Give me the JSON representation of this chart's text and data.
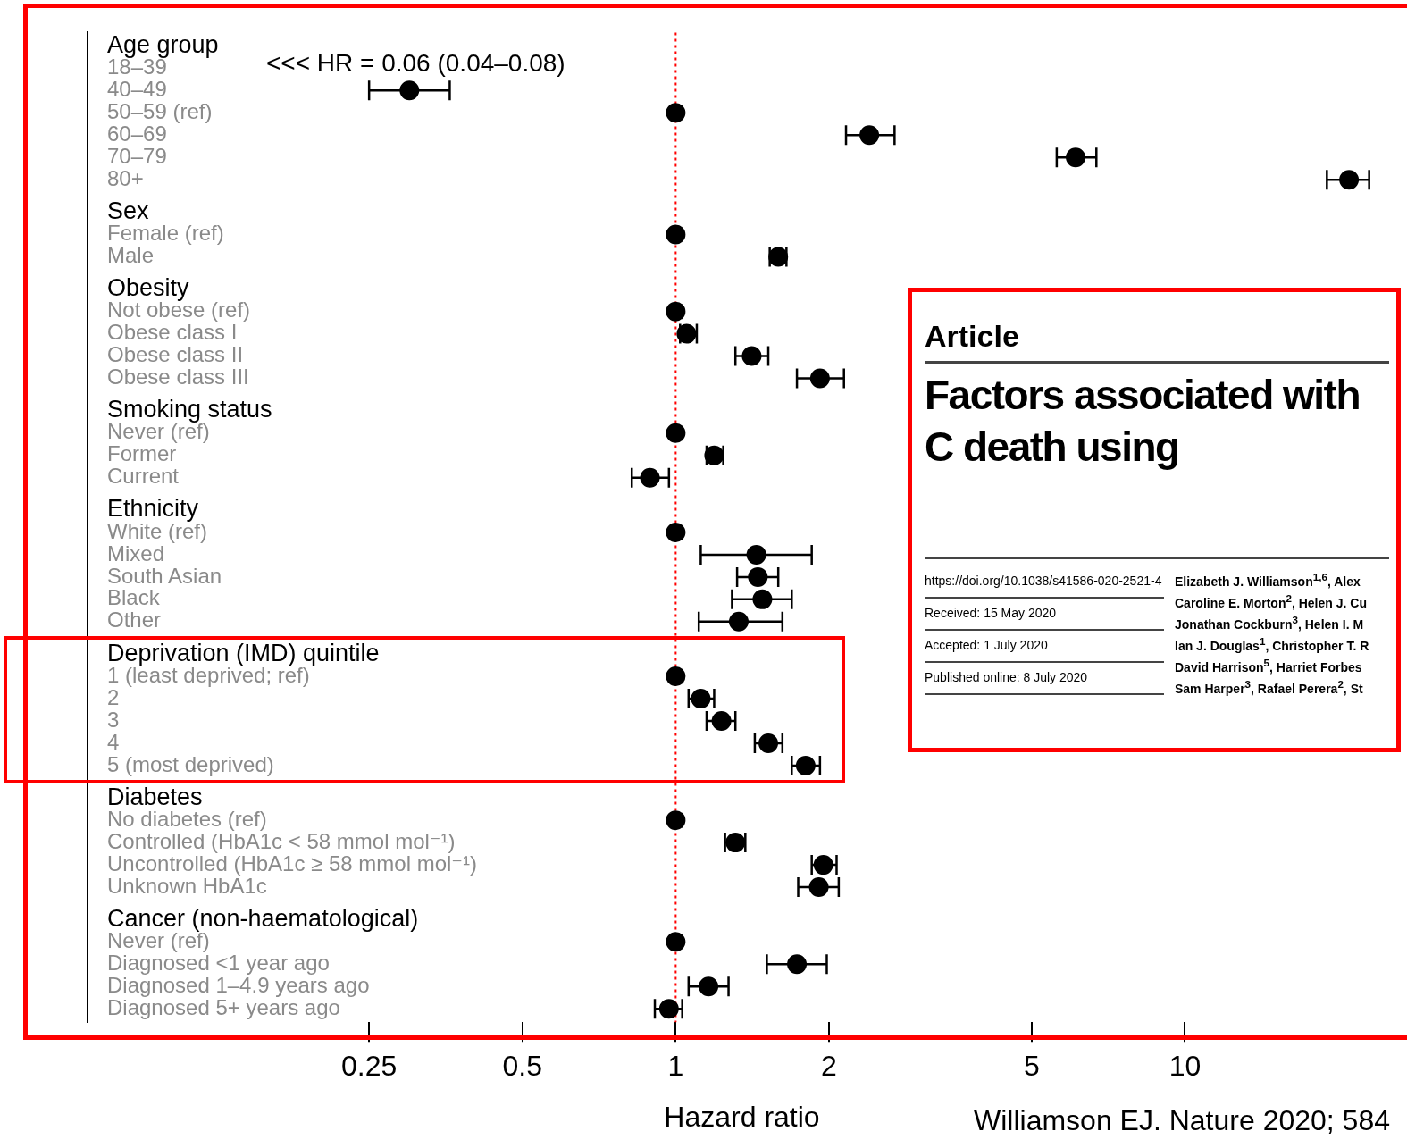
{
  "chart_data": [
    {
      "type": "scatter",
      "orientation": "horizontal",
      "xlabel": "Hazard ratio",
      "log": "x",
      "xlim": [
        0.07,
        26
      ],
      "xticks": [
        0.25,
        0.5,
        1,
        2,
        5,
        10
      ],
      "grid": false,
      "legend": false,
      "marker": "circle",
      "categories": [
        "Age group",
        "18–39",
        "40–49",
        "50–59 (ref)",
        "60–69",
        "70–79",
        "80+",
        "Sex",
        "Female (ref)",
        "Male",
        "Obesity",
        "Not obese (ref)",
        "Obese class I",
        "Obese class II",
        "Obese class III",
        "Smoking status",
        "Never (ref)",
        "Former",
        "Current",
        "Ethnicity",
        "White (ref)",
        "Mixed",
        "South Asian",
        "Black",
        "Other",
        "Deprivation (IMD) quintile",
        "1 (least deprived; ref)",
        "2",
        "3",
        "4",
        "5 (most deprived)",
        "Diabetes",
        "No diabetes (ref)",
        "Controlled (HbA1c < 58 mmol mol⁻¹)",
        "Uncontrolled (HbA1c ≥ 58 mmol mol⁻¹)",
        "Unknown HbA1c",
        "Cancer (non-haematological)",
        "Never (ref)",
        "Diagnosed <1 year ago",
        "Diagnosed 1–4.9 years ago",
        "Diagnosed 5+ years ago"
      ],
      "series": [
        {
          "color": "#000000",
          "values": [
            null,
            null,
            0.3,
            1,
            2.4,
            6.1,
            21,
            null,
            null,
            null,
            null,
            null,
            null,
            null,
            null,
            null,
            null,
            null,
            null,
            null,
            null,
            null,
            null,
            null,
            null,
            null,
            null,
            null,
            null,
            null,
            null,
            null,
            null,
            null,
            null,
            null,
            null,
            null,
            null,
            null,
            null
          ],
          "errors": [
            null,
            null,
            [
              0.25,
              0.36
            ],
            null,
            [
              2.16,
              2.69
            ],
            [
              5.6,
              6.7
            ],
            [
              19,
              23
            ],
            null,
            null,
            null,
            null,
            null,
            null,
            null,
            null,
            null,
            null,
            null,
            null,
            null,
            null,
            null,
            null,
            null,
            null,
            null,
            null,
            null,
            null,
            null,
            null,
            null,
            null,
            null,
            null,
            null,
            null,
            null,
            null,
            null,
            null
          ]
        },
        {
          "color": "#000000",
          "values": [
            null,
            null,
            null,
            null,
            null,
            null,
            null,
            null,
            1,
            1.59,
            null,
            null,
            null,
            null,
            null,
            null,
            null,
            null,
            null,
            null,
            null,
            null,
            null,
            null,
            null,
            null,
            null,
            null,
            null,
            null,
            null,
            null,
            null,
            null,
            null,
            null,
            null,
            null,
            null,
            null,
            null
          ],
          "errors": [
            null,
            null,
            null,
            null,
            null,
            null,
            null,
            null,
            null,
            [
              1.53,
              1.65
            ],
            null,
            null,
            null,
            null,
            null,
            null,
            null,
            null,
            null,
            null,
            null,
            null,
            null,
            null,
            null,
            null,
            null,
            null,
            null,
            null,
            null,
            null,
            null,
            null,
            null,
            null,
            null,
            null,
            null,
            null,
            null
          ]
        },
        {
          "color": "#000000",
          "values": [
            null,
            null,
            null,
            null,
            null,
            null,
            null,
            null,
            null,
            null,
            null,
            1,
            1.05,
            1.41,
            1.92,
            null,
            null,
            null,
            null,
            null,
            null,
            null,
            null,
            null,
            null,
            null,
            null,
            null,
            null,
            null,
            null,
            null,
            null,
            null,
            null,
            null,
            null,
            null,
            null,
            null,
            null
          ],
          "errors": [
            null,
            null,
            null,
            null,
            null,
            null,
            null,
            null,
            null,
            null,
            null,
            null,
            [
              1.02,
              1.1
            ],
            [
              1.31,
              1.52
            ],
            [
              1.73,
              2.14
            ],
            null,
            null,
            null,
            null,
            null,
            null,
            null,
            null,
            null,
            null,
            null,
            null,
            null,
            null,
            null,
            null,
            null,
            null,
            null,
            null,
            null,
            null,
            null,
            null,
            null,
            null
          ]
        },
        {
          "color": "#000000",
          "values": [
            null,
            null,
            null,
            null,
            null,
            null,
            null,
            null,
            null,
            null,
            null,
            null,
            null,
            null,
            null,
            null,
            1,
            1.19,
            0.89,
            null,
            null,
            null,
            null,
            null,
            null,
            null,
            null,
            null,
            null,
            null,
            null,
            null,
            null,
            null,
            null,
            null,
            null,
            null,
            null,
            null,
            null
          ],
          "errors": [
            null,
            null,
            null,
            null,
            null,
            null,
            null,
            null,
            null,
            null,
            null,
            null,
            null,
            null,
            null,
            null,
            null,
            [
              1.15,
              1.24
            ],
            [
              0.82,
              0.97
            ],
            null,
            null,
            null,
            null,
            null,
            null,
            null,
            null,
            null,
            null,
            null,
            null,
            null,
            null,
            null,
            null,
            null,
            null,
            null,
            null,
            null,
            null
          ]
        },
        {
          "color": "#000000",
          "values": [
            null,
            null,
            null,
            null,
            null,
            null,
            null,
            null,
            null,
            null,
            null,
            null,
            null,
            null,
            null,
            null,
            null,
            null,
            null,
            null,
            1,
            1.44,
            1.45,
            1.48,
            1.33,
            null,
            null,
            null,
            null,
            null,
            null,
            null,
            null,
            null,
            null,
            null,
            null,
            null,
            null,
            null,
            null
          ],
          "errors": [
            null,
            null,
            null,
            null,
            null,
            null,
            null,
            null,
            null,
            null,
            null,
            null,
            null,
            null,
            null,
            null,
            null,
            null,
            null,
            null,
            null,
            [
              1.12,
              1.85
            ],
            [
              1.32,
              1.59
            ],
            [
              1.29,
              1.69
            ],
            [
              1.11,
              1.62
            ],
            null,
            null,
            null,
            null,
            null,
            null,
            null,
            null,
            null,
            null,
            null,
            null,
            null,
            null,
            null,
            null
          ]
        },
        {
          "color": "#000000",
          "values": [
            null,
            null,
            null,
            null,
            null,
            null,
            null,
            null,
            null,
            null,
            null,
            null,
            null,
            null,
            null,
            null,
            null,
            null,
            null,
            null,
            null,
            null,
            null,
            null,
            null,
            null,
            1,
            1.12,
            1.23,
            1.52,
            1.8,
            null,
            null,
            null,
            null,
            null,
            null,
            null,
            null,
            null,
            null
          ],
          "errors": [
            null,
            null,
            null,
            null,
            null,
            null,
            null,
            null,
            null,
            null,
            null,
            null,
            null,
            null,
            null,
            null,
            null,
            null,
            null,
            null,
            null,
            null,
            null,
            null,
            null,
            null,
            null,
            [
              1.06,
              1.19
            ],
            [
              1.15,
              1.31
            ],
            [
              1.43,
              1.62
            ],
            [
              1.69,
              1.92
            ],
            null,
            null,
            null,
            null,
            null,
            null,
            null,
            null,
            null,
            null
          ]
        },
        {
          "color": "#000000",
          "values": [
            null,
            null,
            null,
            null,
            null,
            null,
            null,
            null,
            null,
            null,
            null,
            null,
            null,
            null,
            null,
            null,
            null,
            null,
            null,
            null,
            null,
            null,
            null,
            null,
            null,
            null,
            null,
            null,
            null,
            null,
            null,
            null,
            1,
            1.31,
            1.95,
            1.91,
            null,
            null,
            null,
            null,
            null
          ],
          "errors": [
            null,
            null,
            null,
            null,
            null,
            null,
            null,
            null,
            null,
            null,
            null,
            null,
            null,
            null,
            null,
            null,
            null,
            null,
            null,
            null,
            null,
            null,
            null,
            null,
            null,
            null,
            null,
            null,
            null,
            null,
            null,
            null,
            null,
            [
              1.25,
              1.37
            ],
            [
              1.85,
              2.07
            ],
            [
              1.74,
              2.09
            ],
            null,
            null,
            null,
            null,
            null
          ]
        },
        {
          "color": "#000000",
          "values": [
            null,
            null,
            null,
            null,
            null,
            null,
            null,
            null,
            null,
            null,
            null,
            null,
            null,
            null,
            null,
            null,
            null,
            null,
            null,
            null,
            null,
            null,
            null,
            null,
            null,
            null,
            null,
            null,
            null,
            null,
            null,
            null,
            null,
            null,
            null,
            null,
            null,
            1,
            1.73,
            1.16,
            0.97
          ],
          "errors": [
            null,
            null,
            null,
            null,
            null,
            null,
            null,
            null,
            null,
            null,
            null,
            null,
            null,
            null,
            null,
            null,
            null,
            null,
            null,
            null,
            null,
            null,
            null,
            null,
            null,
            null,
            null,
            null,
            null,
            null,
            null,
            null,
            null,
            null,
            null,
            null,
            null,
            null,
            [
              1.51,
              1.98
            ],
            [
              1.06,
              1.27
            ],
            [
              0.91,
              1.03
            ]
          ]
        }
      ],
      "ref_lines": [
        {
          "axis": "x",
          "value": 1,
          "color": "#ff0000",
          "line_style": "dotted"
        }
      ],
      "annotations": [
        "<<< HR = 0.06 (0.04–0.08)",
        "Williamson EJ. Nature 2020; 584"
      ]
    },
    {
      "type": "other",
      "subtitle": "Article",
      "title": "Factors associated with C death using",
      "annotations": [
        "https://doi.org/10.1038/s41586-020-2521-4",
        "Received: 15 May 2020",
        "Accepted: 1 July 2020",
        "Published online: 8 July 2020",
        "Elizabeth J. Williamson$^{1,6}$, Alex",
        "Caroline E. Morton$^{2}$, Helen J. Cu",
        "Jonathan Cockburn$^{3}$, Helen I. M",
        "Ian J. Douglas$^{1}$, Christopher T. R",
        "David Harrison$^{5}$, Harriet Forbes",
        "Sam Harper$^{3}$, Rafael Perera$^{2}$, St"
      ]
    }
  ]
}
